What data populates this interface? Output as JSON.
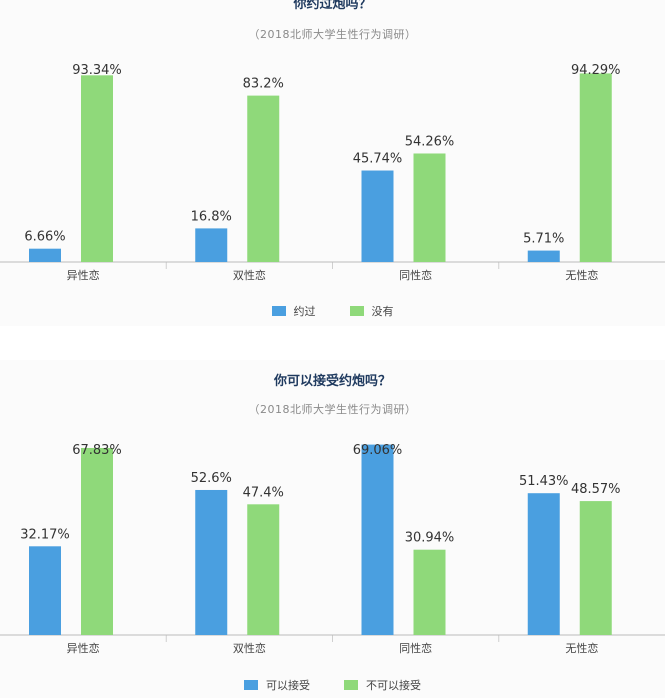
{
  "colors": {
    "series_a": "#4a9fe0",
    "series_b": "#8fd97a"
  },
  "chart_data": [
    {
      "type": "bar",
      "title": "你约过炮吗？",
      "subtitle": "（2018北师大学生性行为调研）",
      "categories": [
        "异性恋",
        "双性恋",
        "同性恋",
        "无性恋"
      ],
      "series": [
        {
          "name": "约过",
          "values": [
            6.66,
            16.8,
            45.74,
            5.71
          ],
          "labels": [
            "6.66%",
            "16.8%",
            "45.74%",
            "5.71%"
          ]
        },
        {
          "name": "没有",
          "values": [
            93.34,
            83.2,
            54.26,
            94.29
          ],
          "labels": [
            "93.34%",
            "83.2%",
            "54.26%",
            "94.29%"
          ]
        }
      ],
      "ylim": [
        0,
        100
      ],
      "legend": "bottom"
    },
    {
      "type": "bar",
      "title": "你可以接受约炮吗？",
      "subtitle": "（2018北师大学生性行为调研）",
      "categories": [
        "异性恋",
        "双性恋",
        "同性恋",
        "无性恋"
      ],
      "series": [
        {
          "name": "可以接受",
          "values": [
            32.17,
            52.6,
            69.06,
            51.43
          ],
          "labels": [
            "32.17%",
            "52.6%",
            "69.06%",
            "51.43%"
          ]
        },
        {
          "name": "不可以接受",
          "values": [
            67.83,
            47.4,
            30.94,
            48.57
          ],
          "labels": [
            "67.83%",
            "47.4%",
            "30.94%",
            "48.57%"
          ]
        }
      ],
      "ylim": [
        0,
        70
      ],
      "legend": "bottom"
    }
  ]
}
